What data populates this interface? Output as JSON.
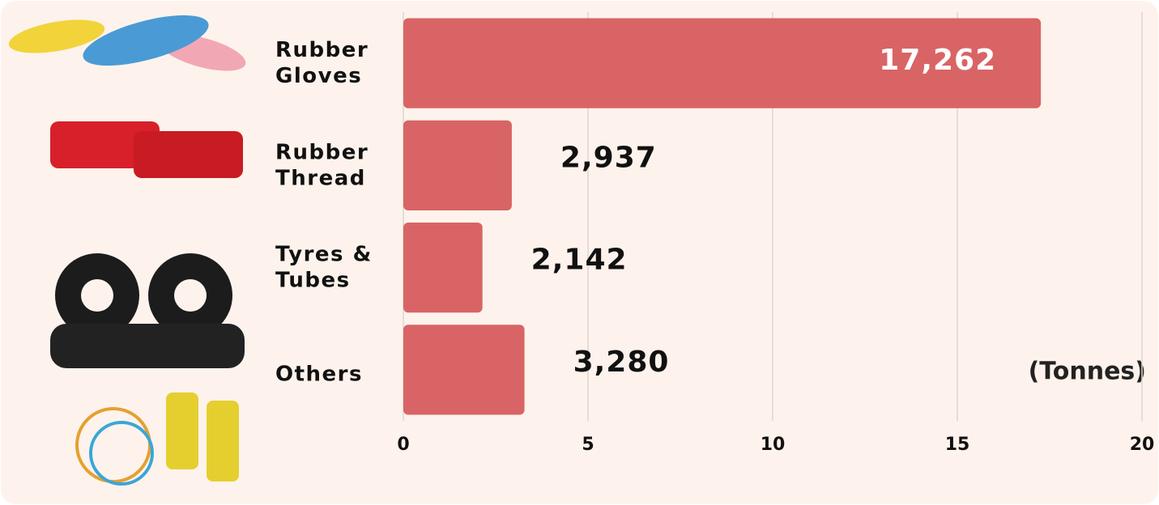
{
  "chart_data": {
    "type": "bar",
    "orientation": "horizontal",
    "categories": [
      "Rubber Gloves",
      "Rubber Thread",
      "Tyres & Tubes",
      "Others"
    ],
    "values": [
      17.262,
      2.937,
      2.142,
      3.28
    ],
    "value_labels": [
      "17,262",
      "2,937",
      "2,142",
      "3,280"
    ],
    "color": "#d96465",
    "xlim": [
      0,
      20
    ],
    "xticks": [
      0,
      5,
      10,
      15,
      20
    ],
    "grid": true,
    "annotation": "(Tonnes)"
  }
}
